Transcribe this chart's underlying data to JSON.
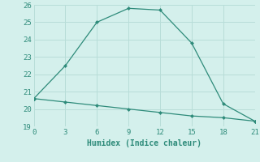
{
  "line1_x": [
    0,
    3,
    6,
    9,
    12,
    15,
    18,
    21
  ],
  "line1_y": [
    20.6,
    22.5,
    25.0,
    25.8,
    25.7,
    23.8,
    20.3,
    19.3
  ],
  "line2_x": [
    0,
    3,
    6,
    9,
    12,
    15,
    18,
    21
  ],
  "line2_y": [
    20.6,
    20.4,
    20.2,
    20.0,
    19.8,
    19.6,
    19.5,
    19.3
  ],
  "line_color": "#2e8b7a",
  "marker": "D",
  "marker_size": 2.5,
  "xlabel": "Humidex (Indice chaleur)",
  "xlim": [
    0,
    21
  ],
  "ylim": [
    19,
    26
  ],
  "yticks": [
    19,
    20,
    21,
    22,
    23,
    24,
    25,
    26
  ],
  "xticks": [
    0,
    3,
    6,
    9,
    12,
    15,
    18,
    21
  ],
  "bg_color": "#d4f0ec",
  "grid_color": "#b8ddd8"
}
